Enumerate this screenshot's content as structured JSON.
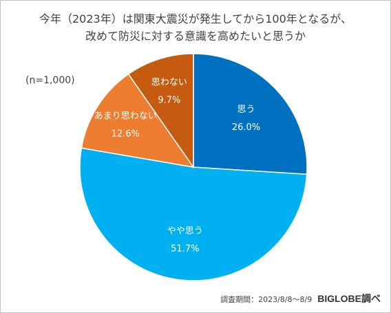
{
  "title_lines": [
    "今年（2023年）は関東大震災が発生してから100年となるが、",
    "改めて防災に対する意識を高めたいと思うか"
  ],
  "sample_note": "(n=1,000)",
  "footer": {
    "period": "調査期間：2023/8/8～8/9",
    "brand": "BIGLOBE調べ"
  },
  "chart_data": {
    "type": "pie",
    "title": "今年（2023年）は関東大震災が発生してから100年となるが、改めて防災に対する意識を高めたいと思うか",
    "start": "12 o'clock",
    "direction": "clockwise",
    "slices": [
      {
        "label": "思う",
        "value": 26.0,
        "display": "26.0%",
        "color": "#0070c0"
      },
      {
        "label": "やや思う",
        "value": 51.7,
        "display": "51.7%",
        "color": "#00b0f0"
      },
      {
        "label": "あまり思わない",
        "value": 12.6,
        "display": "12.6%",
        "color": "#ed7d31"
      },
      {
        "label": "思わない",
        "value": 9.7,
        "display": "9.7%",
        "color": "#c55a11"
      }
    ]
  }
}
